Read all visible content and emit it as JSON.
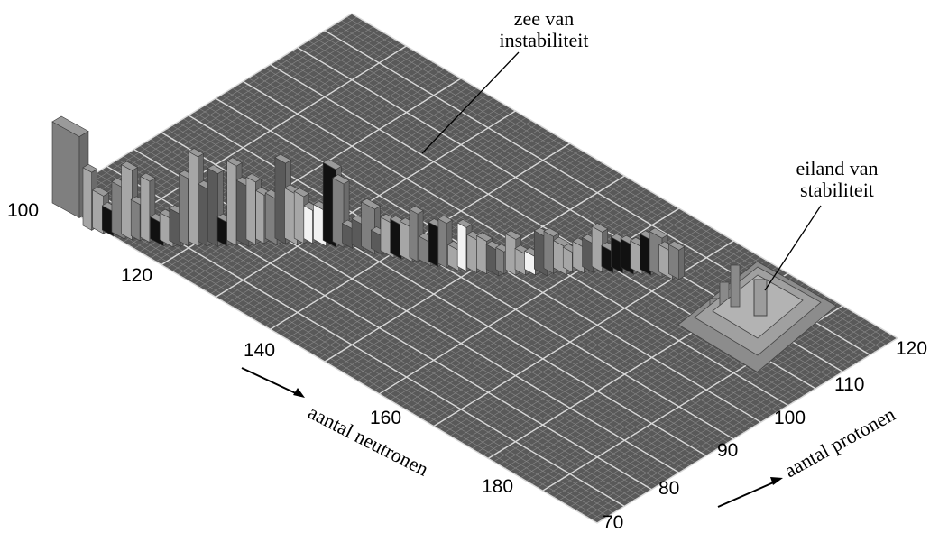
{
  "neutron_ticks": [
    "100",
    "120",
    "140",
    "160",
    "180"
  ],
  "proton_ticks": [
    "70",
    "80",
    "90",
    "100",
    "110",
    "120"
  ],
  "axis_labels": {
    "neutrons": "aantal neutronen",
    "protons": "aantal protonen"
  },
  "annotations": {
    "sea_line1": "zee van",
    "sea_line2": "instabiliteit",
    "island_line1": "eiland van",
    "island_line2": "stabiliteit"
  },
  "colors": {
    "plane": "#595959",
    "grid_fine": "#8a8a8a",
    "grid_major": "#d9d9d9",
    "bar_light": "#a6a6a6",
    "bar_mid": "#7f7f7f",
    "bar_dark": "#5a5a5a",
    "bar_white": "#f2f2f2",
    "bar_black": "#111111"
  }
}
